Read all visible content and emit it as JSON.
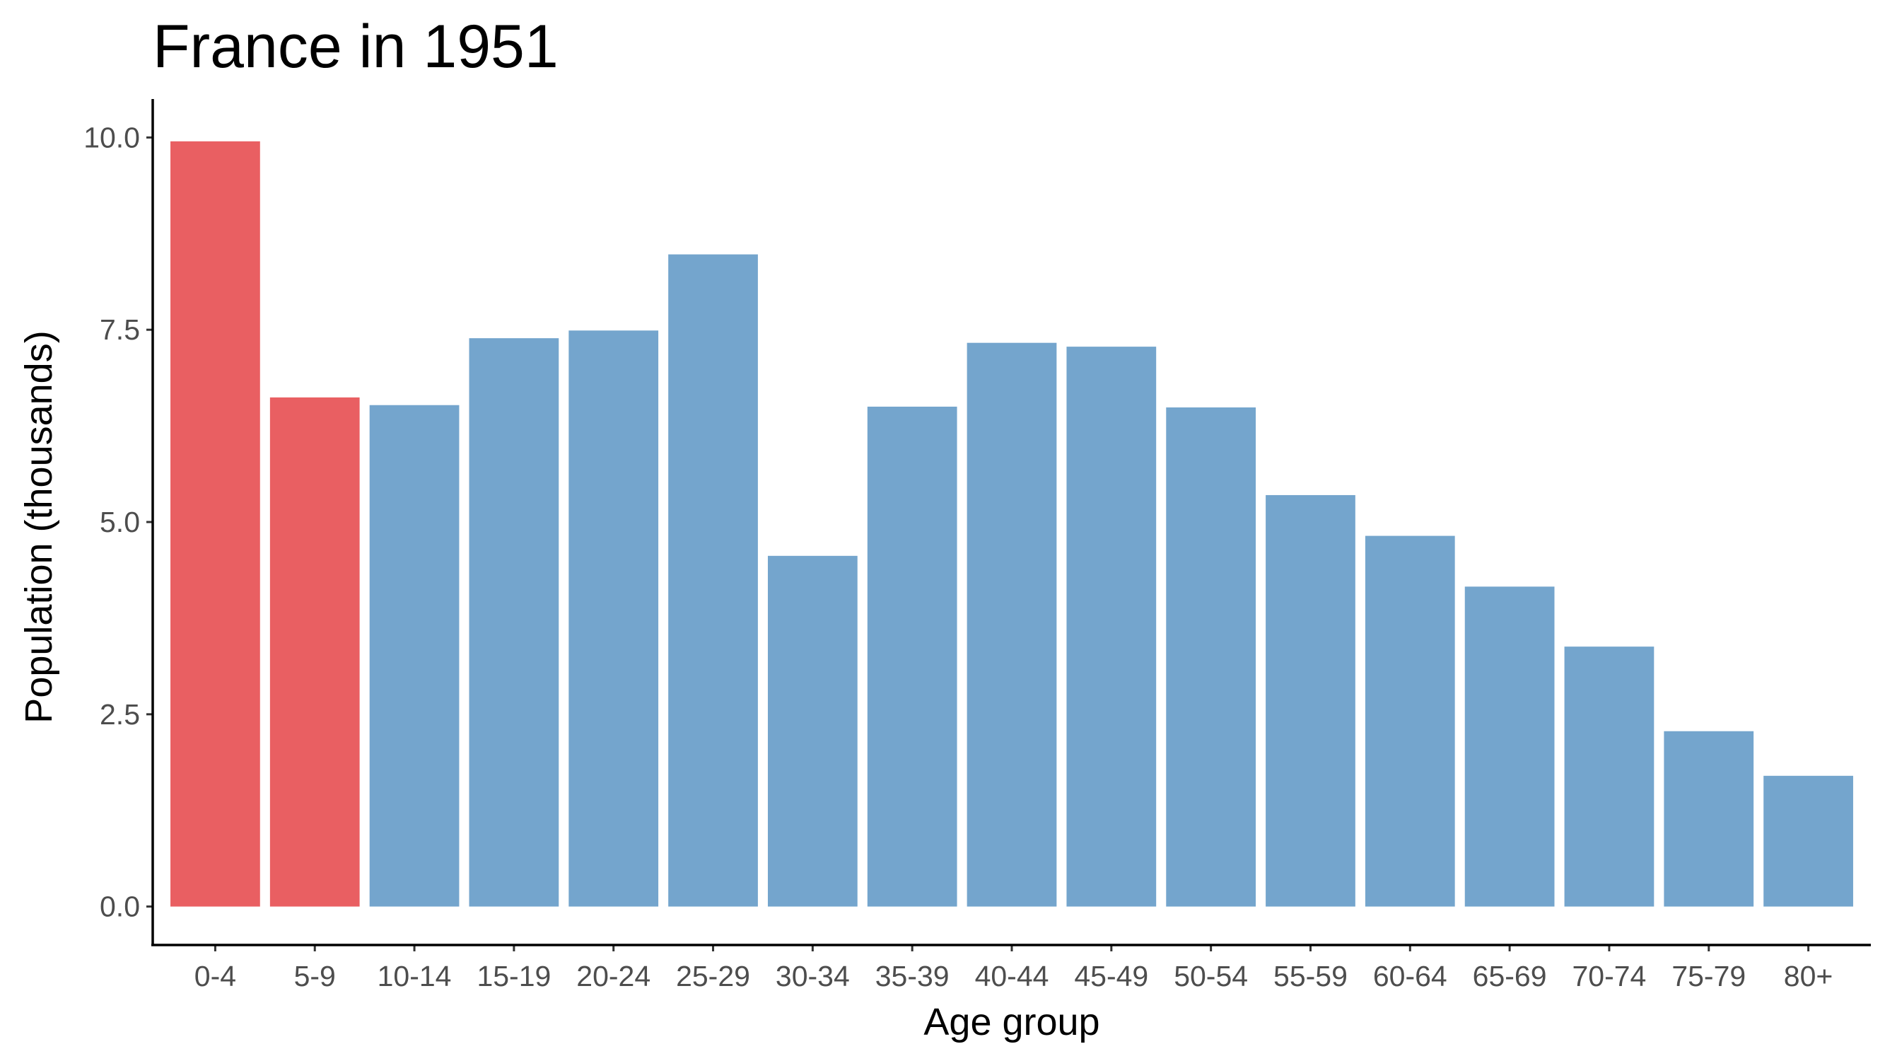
{
  "chart_data": {
    "type": "bar",
    "title": "France in 1951",
    "xlabel": "Age group",
    "ylabel": "Population (thousands)",
    "categories": [
      "0-4",
      "5-9",
      "10-14",
      "15-19",
      "20-24",
      "25-29",
      "30-34",
      "35-39",
      "40-44",
      "45-49",
      "50-54",
      "55-59",
      "60-64",
      "65-69",
      "70-74",
      "75-79",
      "80+"
    ],
    "values": [
      9.95,
      6.62,
      6.52,
      7.39,
      7.49,
      8.48,
      4.56,
      6.5,
      7.33,
      7.28,
      6.49,
      5.35,
      4.82,
      4.16,
      3.38,
      2.28,
      1.7
    ],
    "bar_colors": [
      "#e95f62",
      "#e95f62",
      "#74a5cd",
      "#74a5cd",
      "#74a5cd",
      "#74a5cd",
      "#74a5cd",
      "#74a5cd",
      "#74a5cd",
      "#74a5cd",
      "#74a5cd",
      "#74a5cd",
      "#74a5cd",
      "#74a5cd",
      "#74a5cd",
      "#74a5cd",
      "#74a5cd"
    ],
    "highlight_color": "#e95f62",
    "base_color": "#74a5cd",
    "yticks": [
      0.0,
      2.5,
      5.0,
      7.5,
      10.0
    ],
    "ytick_labels": [
      "0.0",
      "2.5",
      "5.0",
      "7.5",
      "10.0"
    ],
    "ylim": [
      -0.5,
      10.5
    ],
    "grid": false,
    "legend": "none"
  }
}
